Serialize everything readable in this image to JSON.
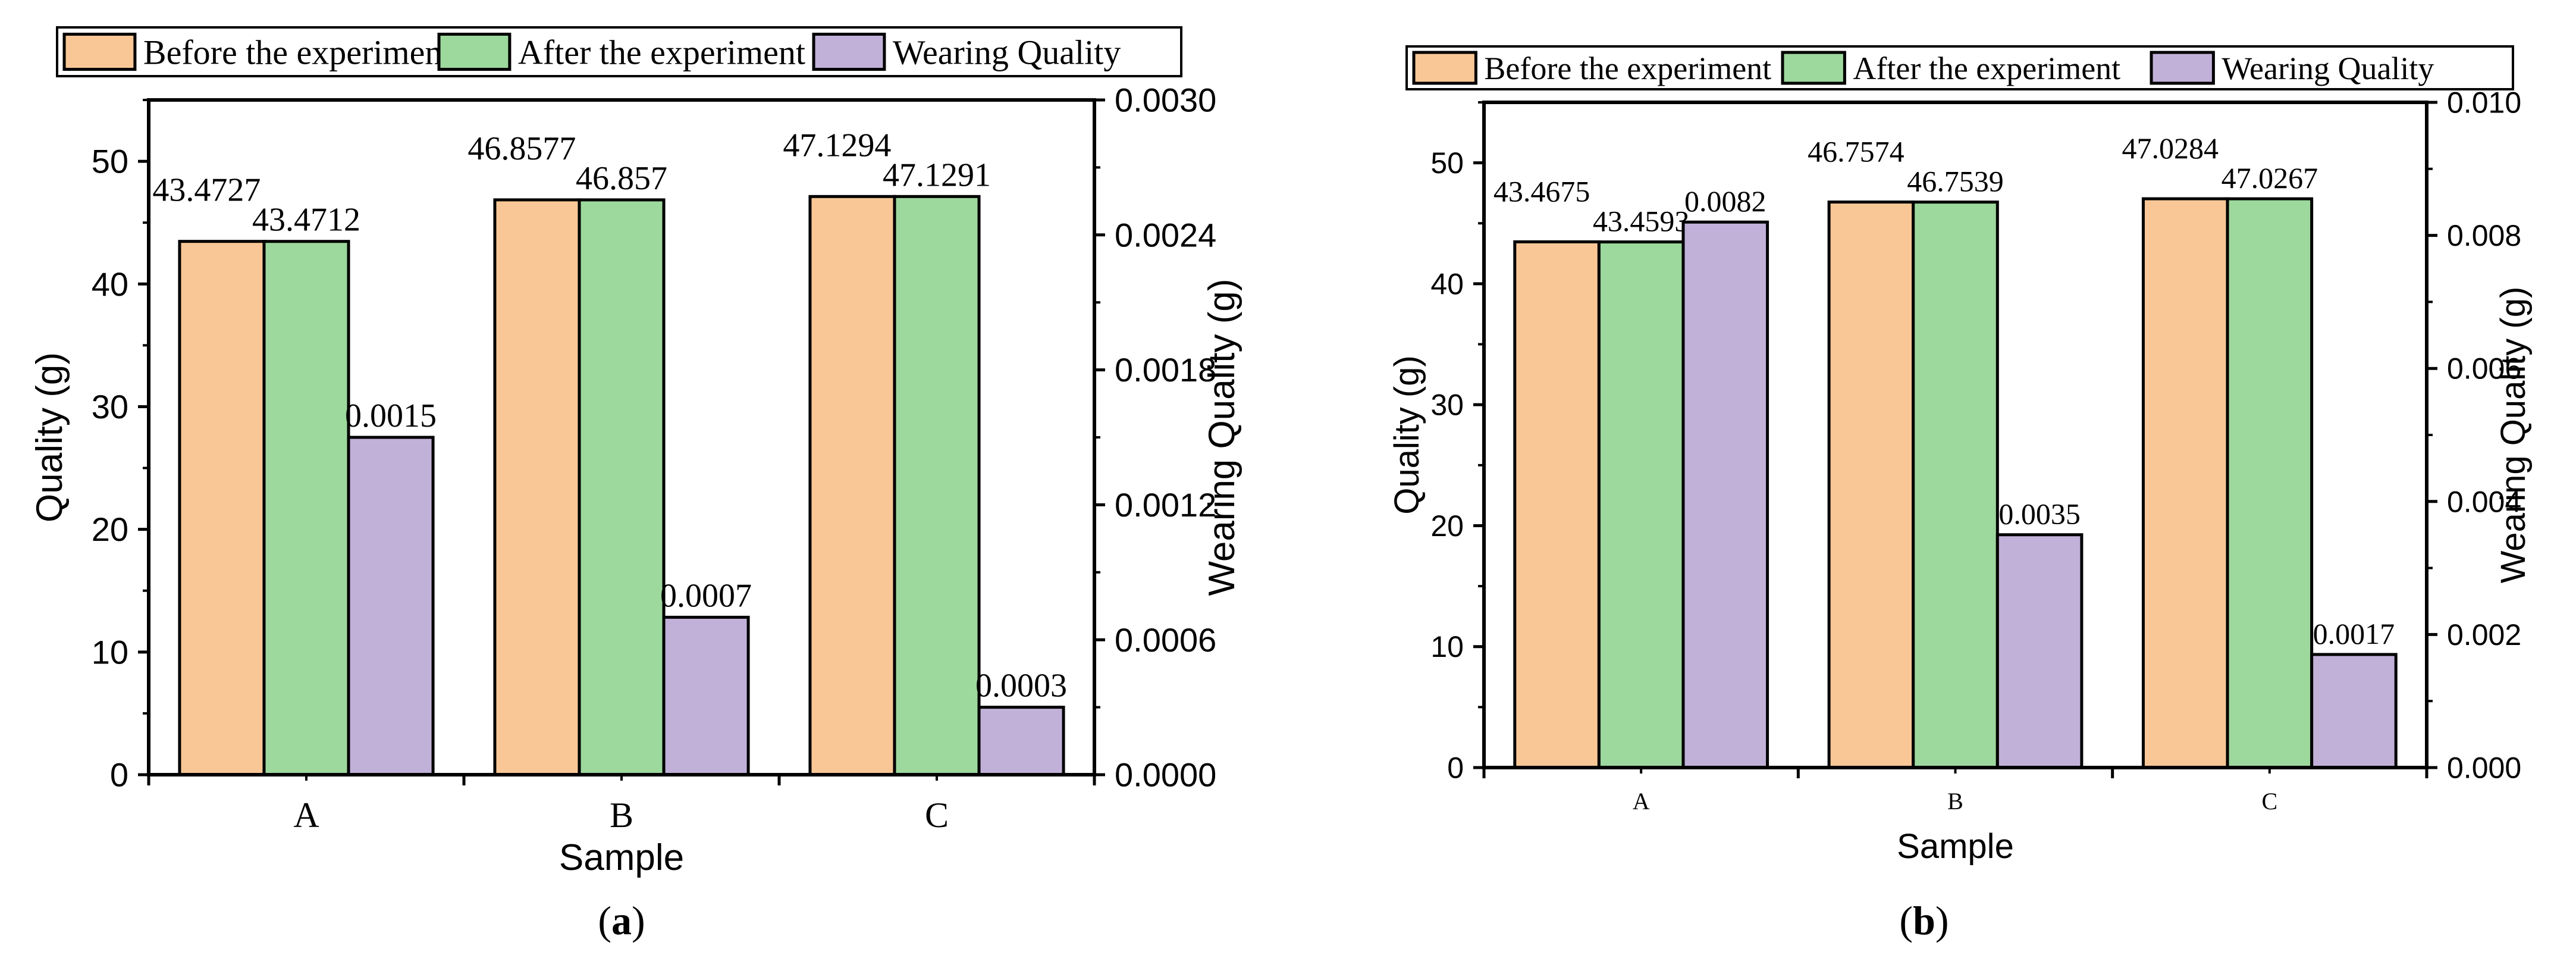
{
  "colors": {
    "before": "#f9c796",
    "after": "#9dd89d",
    "wearing": "#c1b1d8"
  },
  "chart_data": [
    {
      "type": "bar",
      "panel_label": "a",
      "categories": [
        "A",
        "B",
        "C"
      ],
      "xlabel": "Sample",
      "ylabel": "Quality (g)",
      "ylabel_right": "Wearing Quality (g)",
      "ylim": [
        0,
        55
      ],
      "ylim_right": [
        0,
        0.003
      ],
      "yticks": [
        "0",
        "10",
        "20",
        "30",
        "40",
        "50"
      ],
      "yticks_right": [
        "0.0000",
        "0.0006",
        "0.0012",
        "0.0018",
        "0.0024",
        "0.0030"
      ],
      "legend": [
        "Before the experiment",
        "After the experiment",
        "Wearing Quality"
      ],
      "series": [
        {
          "name": "Before the experiment",
          "axis": "left",
          "values": [
            43.4727,
            46.8577,
            47.1294
          ],
          "labels": [
            "43.4727",
            "46.8577",
            "47.1294"
          ]
        },
        {
          "name": "After the experiment",
          "axis": "left",
          "values": [
            43.4712,
            46.857,
            47.1291
          ],
          "labels": [
            "43.4712",
            "46.857",
            "47.1291"
          ]
        },
        {
          "name": "Wearing Quality",
          "axis": "right",
          "values": [
            0.0015,
            0.0007,
            0.0003
          ],
          "labels": [
            "0.0015",
            "0.0007",
            "0.0003"
          ]
        }
      ]
    },
    {
      "type": "bar",
      "panel_label": "b",
      "categories": [
        "A",
        "B",
        "C"
      ],
      "xlabel": "Sample",
      "ylabel": "Quality (g)",
      "ylabel_right": "Wearing Quality (g)",
      "ylim": [
        0,
        55
      ],
      "ylim_right": [
        0,
        0.01
      ],
      "yticks": [
        "0",
        "10",
        "20",
        "30",
        "40",
        "50"
      ],
      "yticks_right": [
        "0.000",
        "0.002",
        "0.004",
        "0.006",
        "0.008",
        "0.010"
      ],
      "legend": [
        "Before the experiment",
        "After the experiment",
        "Wearing Quality"
      ],
      "series": [
        {
          "name": "Before the experiment",
          "axis": "left",
          "values": [
            43.4675,
            46.7574,
            47.0284
          ],
          "labels": [
            "43.4675",
            "46.7574",
            "47.0284"
          ]
        },
        {
          "name": "After the experiment",
          "axis": "left",
          "values": [
            43.4593,
            46.7539,
            47.0267
          ],
          "labels": [
            "43.4593",
            "46.7539",
            "47.0267"
          ]
        },
        {
          "name": "Wearing Quality",
          "axis": "right",
          "values": [
            0.0082,
            0.0035,
            0.0017
          ],
          "labels": [
            "0.0082",
            "0.0035",
            "0.0017"
          ]
        }
      ]
    }
  ]
}
